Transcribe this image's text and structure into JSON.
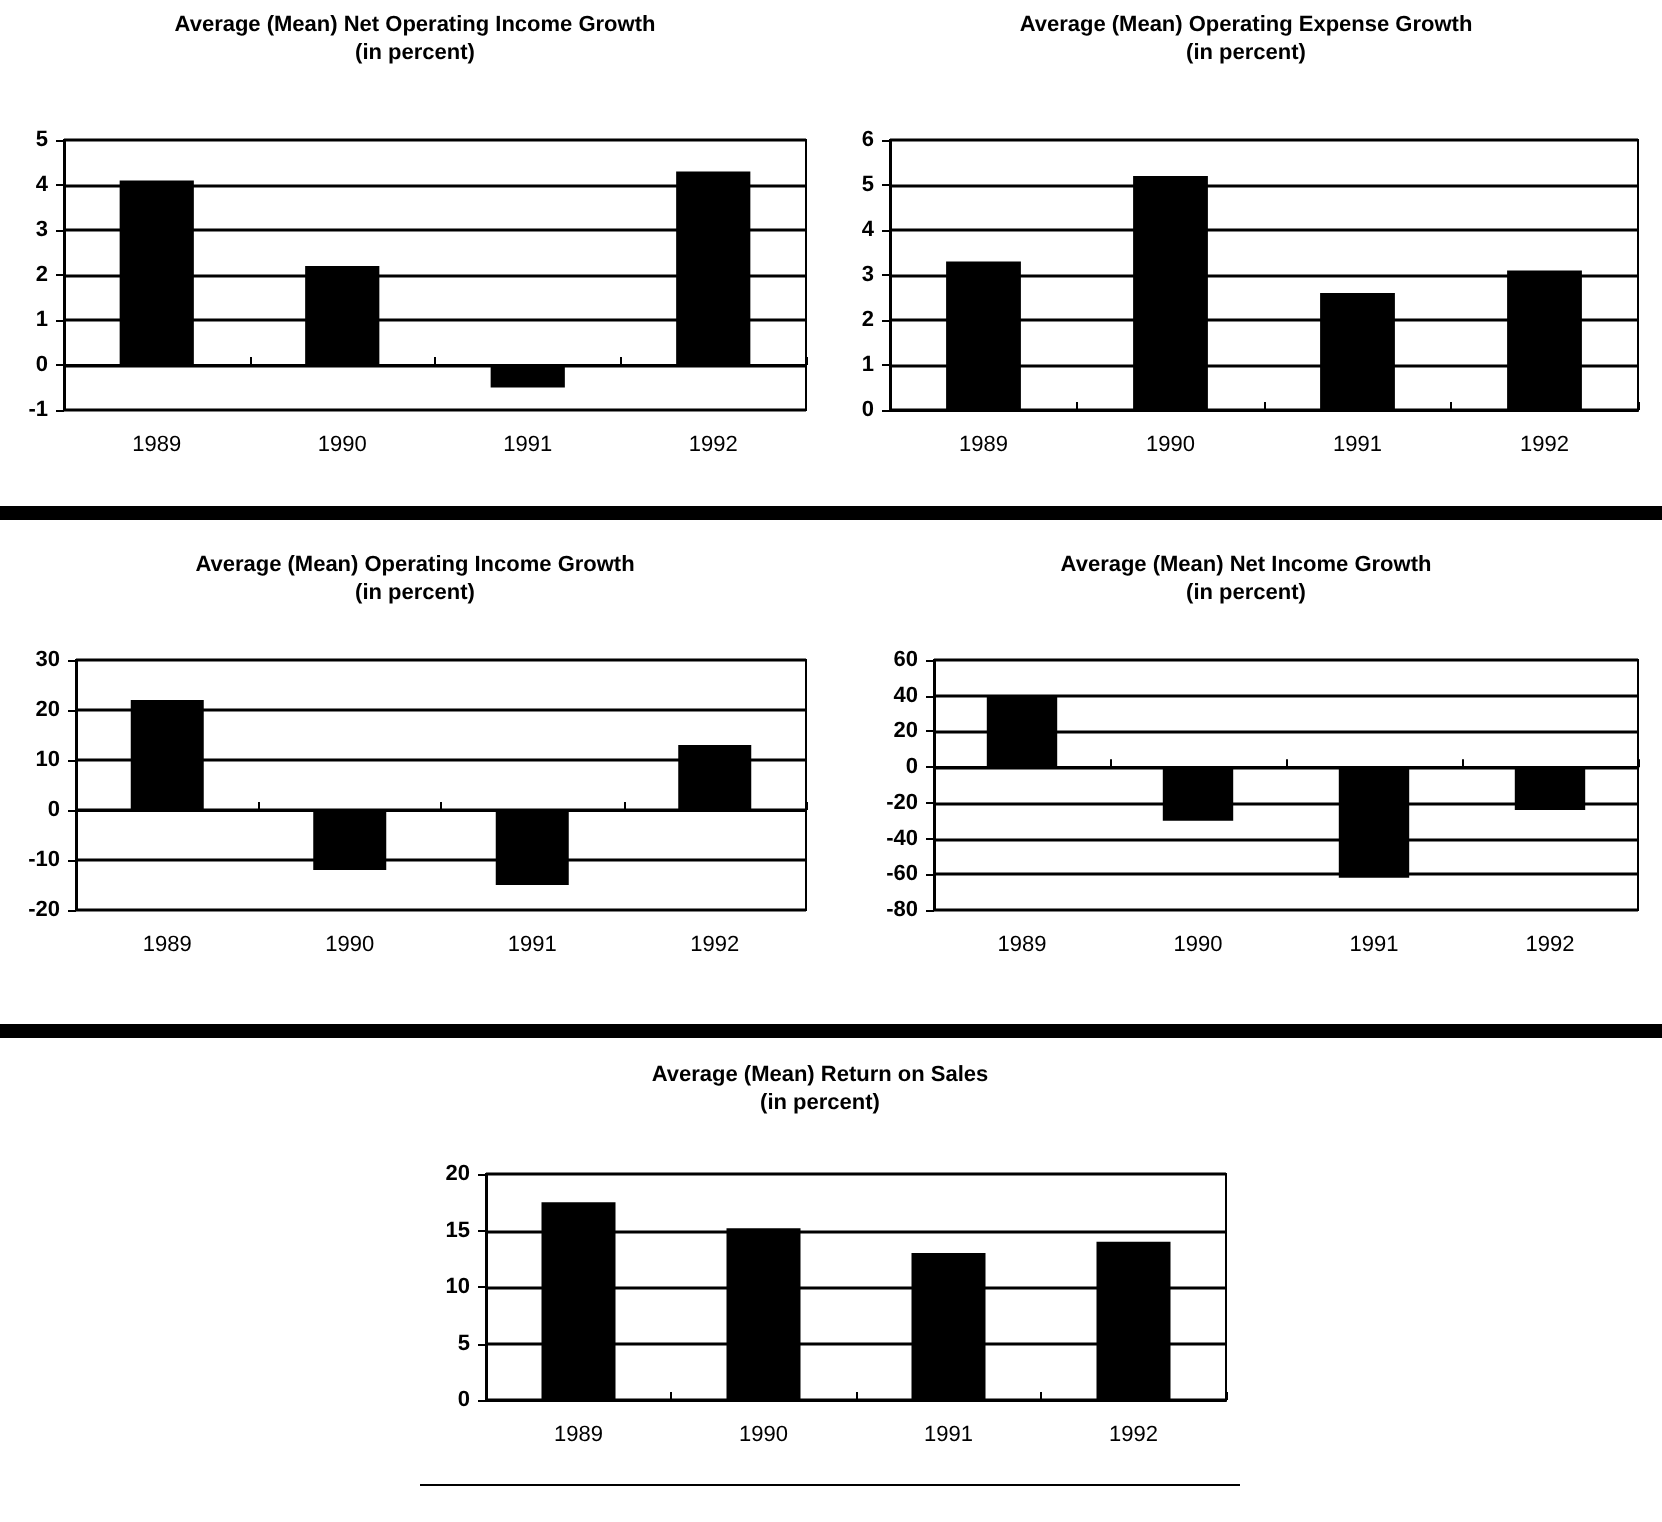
{
  "chart_data": [
    {
      "type": "bar",
      "title": "Average (Mean) Net Operating Income Growth",
      "subtitle": "(in percent)",
      "categories": [
        "1989",
        "1990",
        "1991",
        "1992"
      ],
      "values": [
        4.1,
        2.2,
        -0.5,
        4.3
      ],
      "color": "#000000",
      "ylim": [
        -1,
        5
      ],
      "yticks": [
        -1,
        0,
        1,
        2,
        3,
        4,
        5
      ],
      "grid": "y"
    },
    {
      "type": "bar",
      "title": "Average (Mean) Operating Expense Growth",
      "subtitle": "(in percent)",
      "categories": [
        "1989",
        "1990",
        "1991",
        "1992"
      ],
      "values": [
        3.3,
        5.2,
        2.6,
        3.1
      ],
      "color": "#000000",
      "ylim": [
        0,
        6
      ],
      "yticks": [
        0,
        1,
        2,
        3,
        4,
        5,
        6
      ],
      "grid": "y"
    },
    {
      "type": "bar",
      "title": "Average (Mean) Operating Income Growth",
      "subtitle": "(in percent)",
      "categories": [
        "1989",
        "1990",
        "1991",
        "1992"
      ],
      "values": [
        22,
        -12,
        -15,
        13
      ],
      "color": "#000000",
      "ylim": [
        -20,
        30
      ],
      "yticks": [
        -20,
        -10,
        0,
        10,
        20,
        30
      ],
      "grid": "y"
    },
    {
      "type": "bar",
      "title": "Average (Mean) Net Income Growth",
      "subtitle": "(in percent)",
      "categories": [
        "1989",
        "1990",
        "1991",
        "1992"
      ],
      "values": [
        40,
        -30,
        -62,
        -24
      ],
      "color": "#000000",
      "ylim": [
        -80,
        60
      ],
      "yticks": [
        -80,
        -60,
        -40,
        -20,
        0,
        20,
        40,
        60
      ],
      "grid": "y"
    },
    {
      "type": "bar",
      "title": "Average (Mean) Return on Sales",
      "subtitle": "(in percent)",
      "categories": [
        "1989",
        "1990",
        "1991",
        "1992"
      ],
      "values": [
        17.5,
        15.2,
        13,
        14
      ],
      "color": "#000000",
      "ylim": [
        0,
        20
      ],
      "yticks": [
        0,
        5,
        10,
        15,
        20
      ],
      "grid": "y"
    }
  ]
}
